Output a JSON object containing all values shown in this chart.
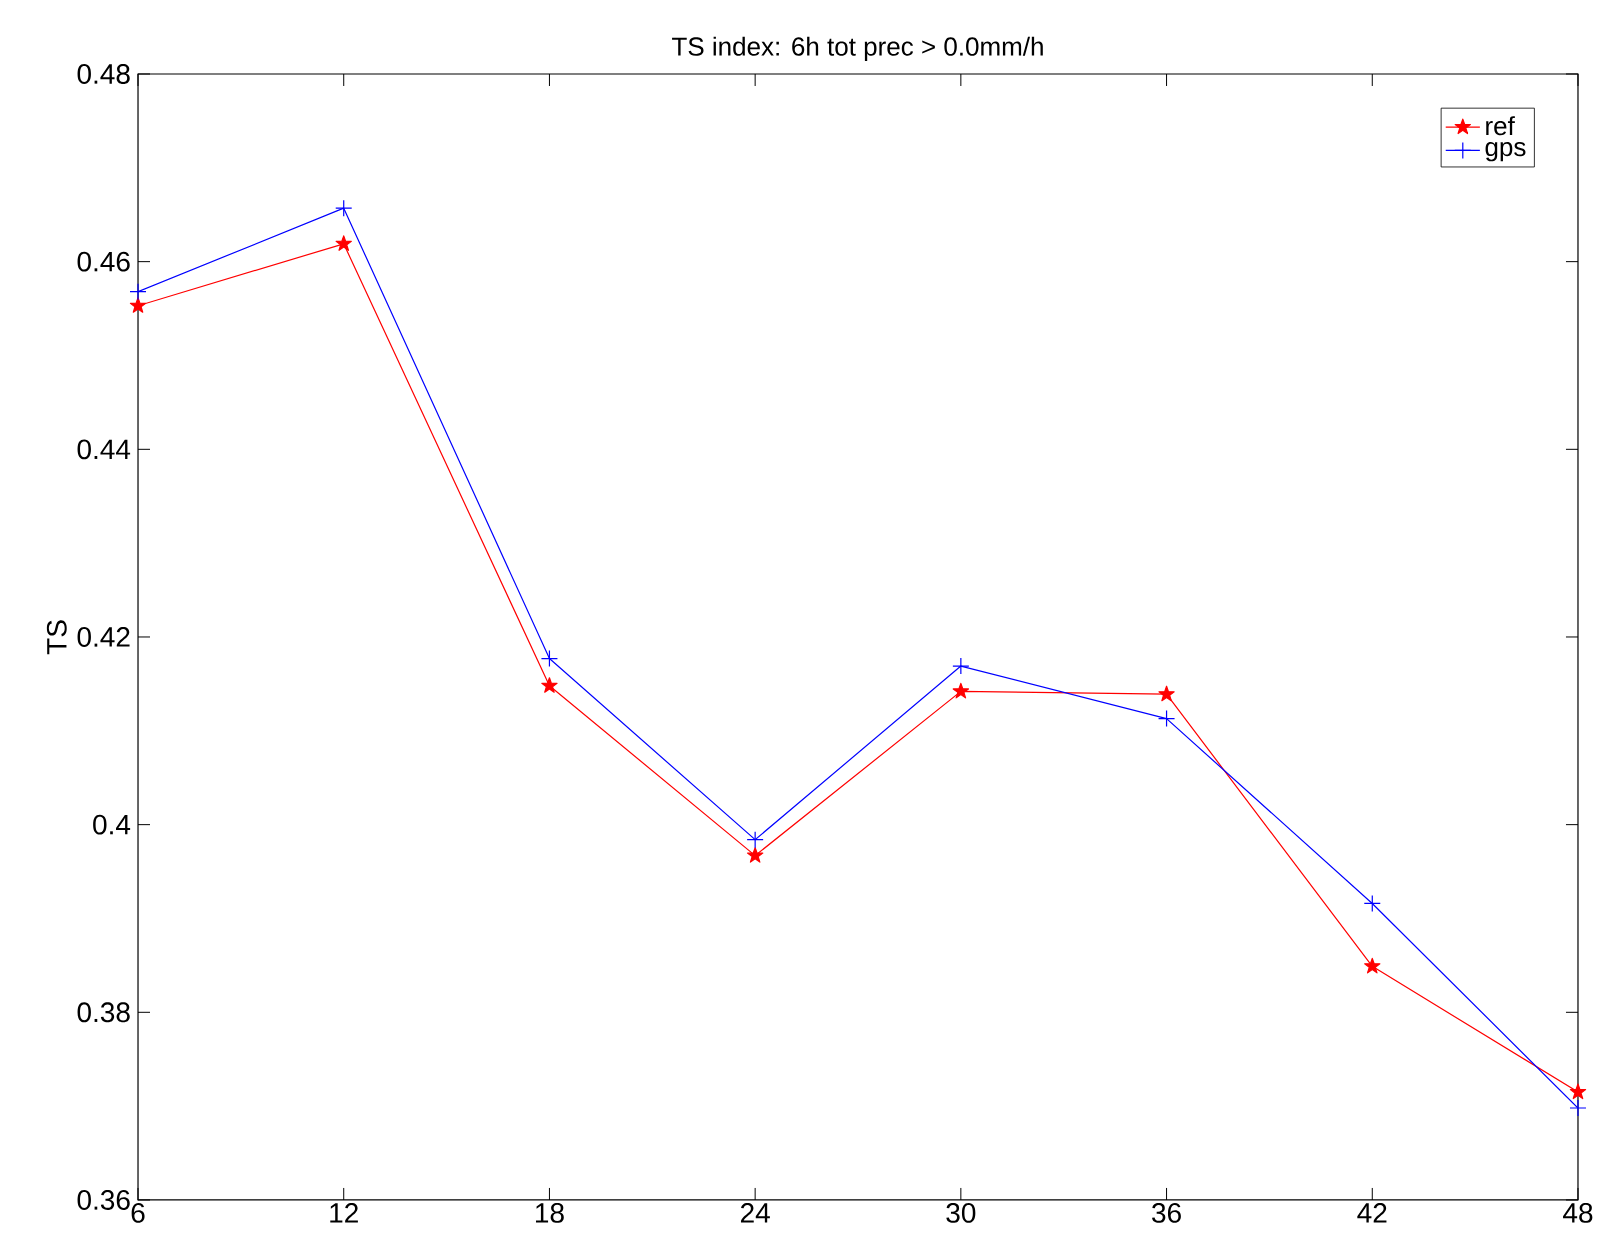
{
  "chart_data": {
    "type": "line",
    "title": "TS index: 6h tot prec > 0.0mm/h",
    "ylabel": "TS",
    "x": [
      6,
      12,
      18,
      24,
      30,
      36,
      42,
      48
    ],
    "series": [
      {
        "name": "ref",
        "color": "#ff0000",
        "marker": "star",
        "values": [
          0.4553,
          0.4619,
          0.4148,
          0.3967,
          0.4142,
          0.4139,
          0.3849,
          0.3715
        ]
      },
      {
        "name": "gps",
        "color": "#0000ff",
        "marker": "cross",
        "values": [
          0.4568,
          0.4657,
          0.4177,
          0.3984,
          0.4169,
          0.4113,
          0.3916,
          0.3698
        ]
      }
    ],
    "xlim": [
      6,
      48
    ],
    "xticks": [
      6,
      12,
      18,
      24,
      30,
      36,
      42,
      48
    ],
    "ylim": [
      0.36,
      0.48
    ],
    "yticks": [
      0.36,
      0.38,
      0.4,
      0.42,
      0.44,
      0.46,
      0.48
    ],
    "grid": false,
    "legend": "top right",
    "line_style": "solid"
  }
}
